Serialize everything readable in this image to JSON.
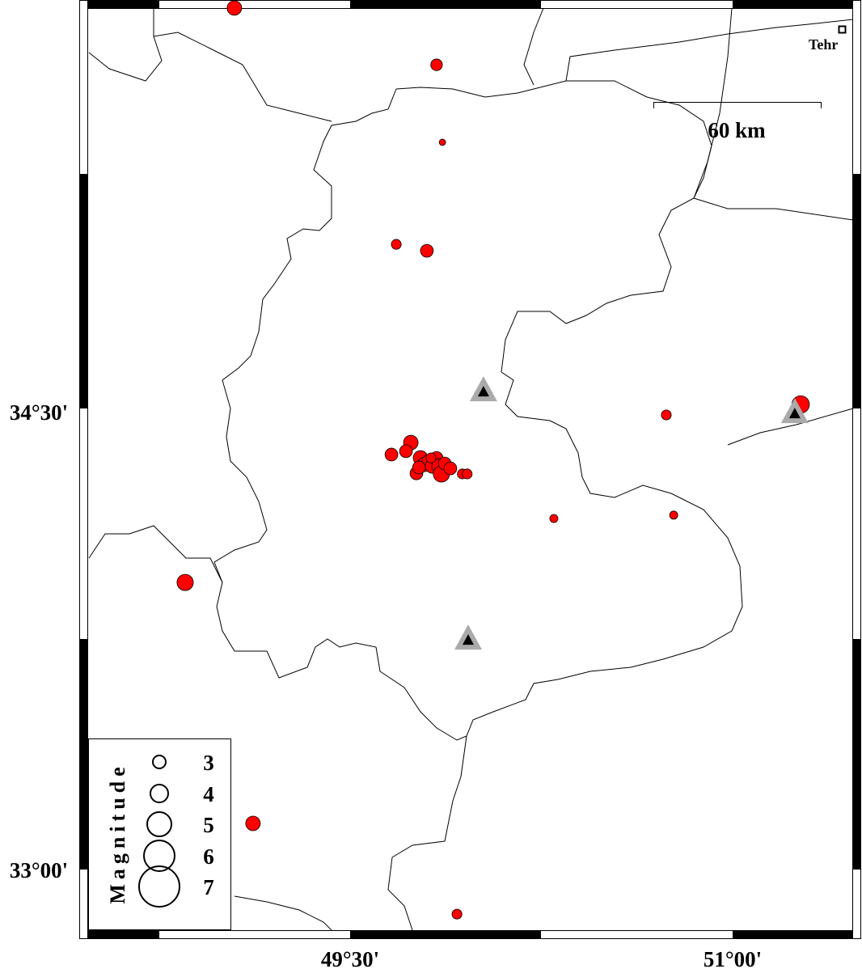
{
  "map": {
    "x_ticks": [
      {
        "label": "49°30'",
        "lon": 49.5
      },
      {
        "label": "51°00'",
        "lon": 51.0
      }
    ],
    "y_ticks": [
      {
        "label": "34°30'",
        "lat": 34.5
      },
      {
        "label": "33°00'",
        "lat": 33.0
      }
    ],
    "scale_bar_label": "60 km",
    "city_label": "Tehr",
    "event_color": "#ff0000",
    "station_color": "#000000",
    "station_halo_color": "#aaaaaa",
    "events": [
      {
        "lon": 49.046,
        "lat": 35.803,
        "mag": 2.5
      },
      {
        "lon": 49.839,
        "lat": 35.618,
        "mag": 2.0
      },
      {
        "lon": 49.862,
        "lat": 35.366,
        "mag": 1.1
      },
      {
        "lon": 49.681,
        "lat": 35.034,
        "mag": 1.7
      },
      {
        "lon": 49.801,
        "lat": 35.013,
        "mag": 2.2
      },
      {
        "lon": 50.74,
        "lat": 34.479,
        "mag": 1.7
      },
      {
        "lon": 51.267,
        "lat": 34.513,
        "mag": 3.0
      },
      {
        "lon": 50.299,
        "lat": 34.142,
        "mag": 1.4
      },
      {
        "lon": 50.769,
        "lat": 34.153,
        "mag": 1.4
      },
      {
        "lon": 48.853,
        "lat": 33.934,
        "mag": 2.8
      },
      {
        "lon": 49.119,
        "lat": 33.15,
        "mag": 2.5
      },
      {
        "lon": 49.919,
        "lat": 32.855,
        "mag": 1.7
      },
      {
        "lon": 49.662,
        "lat": 34.35,
        "mag": 2.2
      },
      {
        "lon": 49.738,
        "lat": 34.389,
        "mag": 2.5
      },
      {
        "lon": 49.719,
        "lat": 34.361,
        "mag": 2.2
      },
      {
        "lon": 49.76,
        "lat": 34.289,
        "mag": 2.2
      },
      {
        "lon": 49.776,
        "lat": 34.339,
        "mag": 2.5
      },
      {
        "lon": 49.792,
        "lat": 34.318,
        "mag": 2.5
      },
      {
        "lon": 49.807,
        "lat": 34.329,
        "mag": 2.2
      },
      {
        "lon": 49.823,
        "lat": 34.313,
        "mag": 2.5
      },
      {
        "lon": 49.839,
        "lat": 34.339,
        "mag": 2.2
      },
      {
        "lon": 49.849,
        "lat": 34.313,
        "mag": 2.5
      },
      {
        "lon": 49.858,
        "lat": 34.287,
        "mag": 2.8
      },
      {
        "lon": 49.871,
        "lat": 34.321,
        "mag": 2.2
      },
      {
        "lon": 49.893,
        "lat": 34.305,
        "mag": 2.2
      },
      {
        "lon": 49.77,
        "lat": 34.308,
        "mag": 2.2
      },
      {
        "lon": 49.817,
        "lat": 34.339,
        "mag": 1.7
      },
      {
        "lon": 49.94,
        "lat": 34.287,
        "mag": 1.7
      },
      {
        "lon": 49.959,
        "lat": 34.287,
        "mag": 1.7
      }
    ],
    "stations": [
      {
        "lon": 50.023,
        "lat": 34.555
      },
      {
        "lon": 51.244,
        "lat": 34.484
      },
      {
        "lon": 49.963,
        "lat": 33.747
      }
    ]
  },
  "legend": {
    "title": "Magnitude",
    "entries": [
      {
        "label": "3",
        "mag": 3
      },
      {
        "label": "4",
        "mag": 4
      },
      {
        "label": "5",
        "mag": 5
      },
      {
        "label": "6",
        "mag": 6
      },
      {
        "label": "7",
        "mag": 7
      }
    ]
  }
}
